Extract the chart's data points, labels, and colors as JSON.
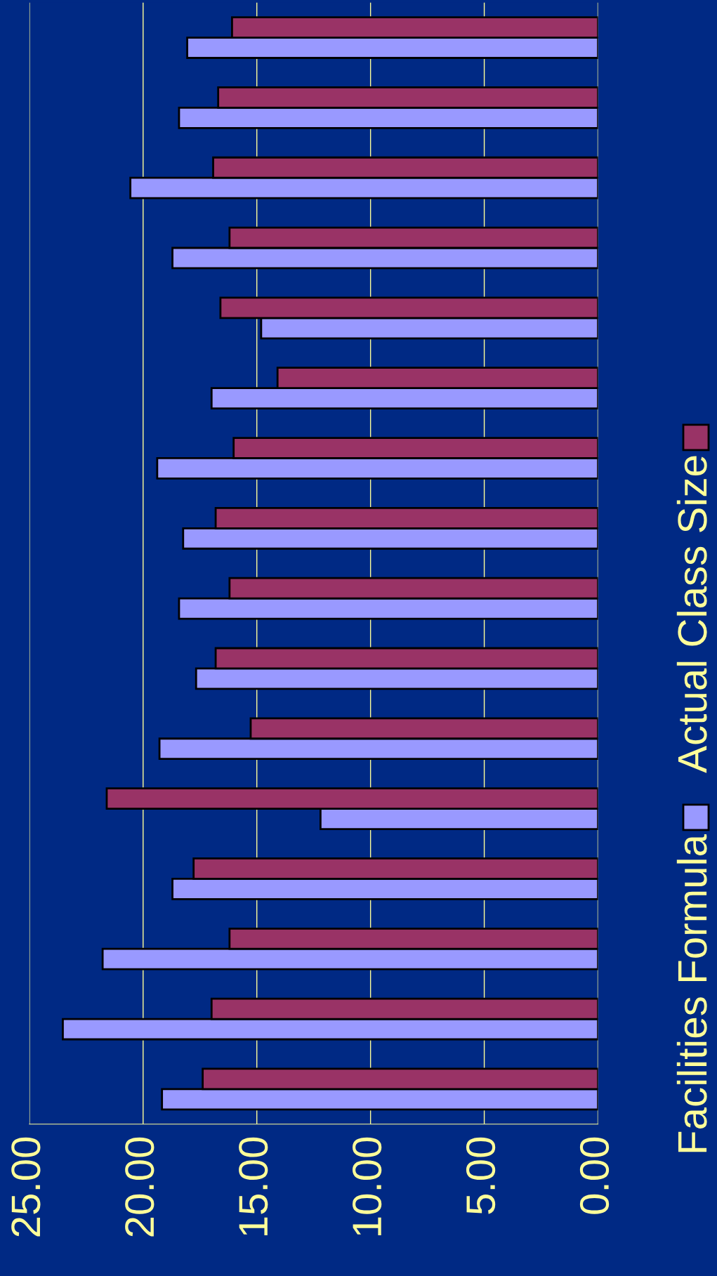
{
  "chart_data": {
    "type": "bar",
    "orientation": "horizontal",
    "categories": [
      null,
      null,
      null,
      null,
      null,
      null,
      null,
      null,
      null,
      null,
      null,
      null,
      null,
      null,
      null,
      null
    ],
    "series": [
      {
        "name": "Facilities Formula",
        "color": "#9999ff",
        "values": [
          18.06,
          18.42,
          20.56,
          18.71,
          14.81,
          16.99,
          19.38,
          18.24,
          18.42,
          17.67,
          19.28,
          12.2,
          18.71,
          21.78,
          23.53,
          19.17
        ]
      },
      {
        "name": "Actual Class Size",
        "color": "#993366",
        "values": [
          16.09,
          16.7,
          16.92,
          16.2,
          16.6,
          14.09,
          16.02,
          16.81,
          16.2,
          16.81,
          15.27,
          21.6,
          17.78,
          16.2,
          16.99,
          17.38
        ]
      }
    ],
    "xlim": [
      25,
      0
    ],
    "xticks": [
      {
        "value": 25,
        "label": "25.00"
      },
      {
        "value": 20,
        "label": "20.00"
      },
      {
        "value": 15,
        "label": "15.00"
      },
      {
        "value": 10,
        "label": "10.00"
      },
      {
        "value": 5,
        "label": "5.00"
      },
      {
        "value": 0,
        "label": "0.00"
      }
    ],
    "grid": "x",
    "legend": "right"
  }
}
